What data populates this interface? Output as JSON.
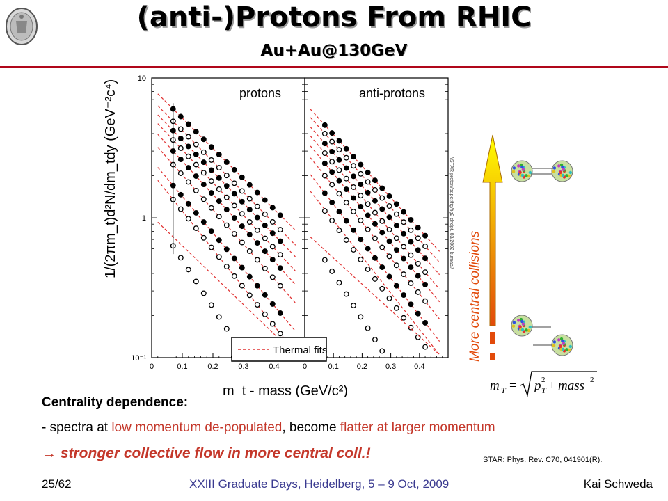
{
  "slide": {
    "title": "(anti-)Protons From RHIC",
    "subtitle": "Au+Au@130GeV",
    "centrality_heading": "Centrality dependence:",
    "line2_parts": [
      "- spectra at ",
      "low momentum de-populated",
      ", become ",
      "flatter at larger momentum"
    ],
    "line3": "→ stronger collective flow in more central coll.!",
    "citation": "STAR: Phys. Rev. C70, 041901(R).",
    "footer_left": "25/62",
    "footer_center": "XXIII Graduate Days, Heidelberg, 5 – 9 Oct, 2009",
    "footer_right": "Kai Schweda",
    "arrow_label": "More central collisions",
    "formula": "m_T = √(p_T² + mass²)",
    "colors": {
      "accent_rule": "#b0071a",
      "text_red": "#c4372a",
      "footer_blue": "#3a3a90"
    },
    "icons": [
      "university-seal-icon",
      "nucleus-collision-icon"
    ]
  },
  "chart_data": {
    "type": "scatter",
    "panels": [
      "protons",
      "anti-protons"
    ],
    "xlabel": "m_t - mass (GeV/c²)",
    "ylabel": "1/(2πm_t)d²N/dm_tdy (GeV⁻²c⁴)",
    "y_scale": "log",
    "ylim": [
      0.1,
      10
    ],
    "y_ticks": [
      "10",
      "1",
      "10⁻¹"
    ],
    "xlim": [
      0,
      0.5
    ],
    "x_ticks": [
      "0",
      "0.1",
      "0.2",
      "0.3",
      "0.4"
    ],
    "legend": {
      "label": "Thermal fits",
      "placement": "bottom-center"
    },
    "side_label": "//STAR proton/paper/fig/fig2 dndpt, 03/2002 kumac//",
    "series": {
      "protons": [
        {
          "filled": true,
          "start": 6.0,
          "slope": 5.0
        },
        {
          "filled": false,
          "start": 4.9,
          "slope": 5.1
        },
        {
          "filled": true,
          "start": 4.2,
          "slope": 5.2
        },
        {
          "filled": false,
          "start": 3.6,
          "slope": 5.4
        },
        {
          "filled": true,
          "start": 3.0,
          "slope": 5.5
        },
        {
          "filled": false,
          "start": 2.4,
          "slope": 5.7
        },
        {
          "filled": true,
          "start": 1.7,
          "slope": 6.0
        },
        {
          "filled": false,
          "start": 1.35,
          "slope": 6.3
        },
        {
          "filled": false,
          "start": 0.63,
          "slope": 7.8
        }
      ],
      "antiprotons": [
        {
          "filled": true,
          "start": 4.6,
          "slope": 5.2
        },
        {
          "filled": false,
          "start": 4.0,
          "slope": 5.3
        },
        {
          "filled": true,
          "start": 3.4,
          "slope": 5.4
        },
        {
          "filled": false,
          "start": 2.9,
          "slope": 5.6
        },
        {
          "filled": true,
          "start": 2.45,
          "slope": 5.7
        },
        {
          "filled": false,
          "start": 2.0,
          "slope": 5.9
        },
        {
          "filled": true,
          "start": 1.5,
          "slope": 6.1
        },
        {
          "filled": false,
          "start": 1.12,
          "slope": 6.4
        },
        {
          "filled": false,
          "start": 0.5,
          "slope": 7.5
        }
      ],
      "x_points": [
        0.07,
        0.095,
        0.12,
        0.145,
        0.17,
        0.195,
        0.22,
        0.245,
        0.27,
        0.295,
        0.32,
        0.345,
        0.37,
        0.395,
        0.42
      ]
    }
  }
}
